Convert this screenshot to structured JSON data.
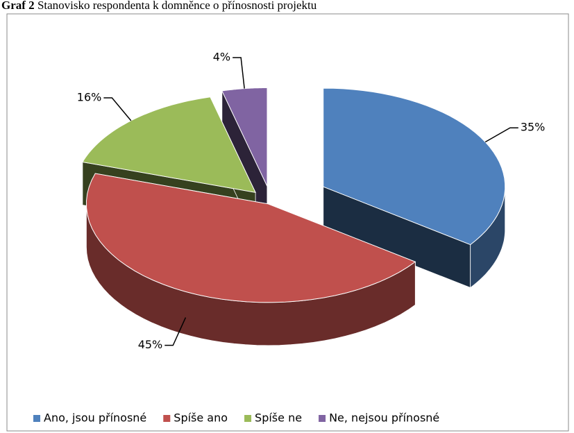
{
  "chart_data": {
    "type": "pie",
    "figure_label": "Graf 2",
    "title": "Stanovisko respondenta k domněnce o přínosnosti projektu",
    "categories": [
      "Ano, jsou přínosné",
      "Spíše ano",
      "Spíše ne",
      "Ne, nejsou přínosné"
    ],
    "values": [
      35,
      45,
      16,
      4
    ],
    "value_labels": [
      "35%",
      "45%",
      "16%",
      "4%"
    ],
    "colors": [
      "#4f81bd",
      "#c0504d",
      "#9bbb59",
      "#8064a2"
    ],
    "legend": "bottom"
  }
}
